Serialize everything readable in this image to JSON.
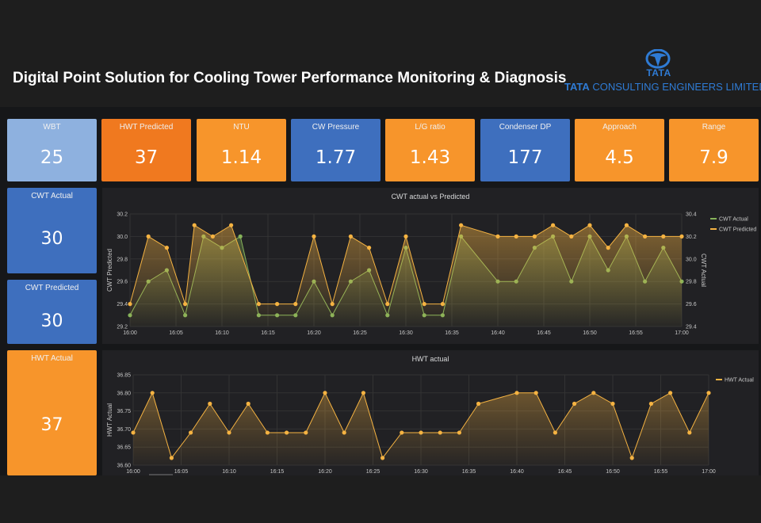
{
  "header": {
    "title": "Digital Point Solution for Cooling Tower Performance Monitoring & Diagnosis",
    "logo_mark_text": "TATA",
    "logo_company_bold": "TATA",
    "logo_company_rest": " CONSULTING ENGINEERS LIMITED"
  },
  "colors": {
    "orange": "#f7952b",
    "dark_orange": "#f0791f",
    "blue": "#3e6fbe",
    "light_blue": "#8eb1df",
    "green": "#86b35a",
    "yellow": "#f5b342"
  },
  "tiles": [
    {
      "label": "WBT",
      "value": "25"
    },
    {
      "label": "HWT Predicted",
      "value": "37"
    },
    {
      "label": "NTU",
      "value": "1.14"
    },
    {
      "label": "CW Pressure",
      "value": "1.77"
    },
    {
      "label": "L/G ratio",
      "value": "1.43"
    },
    {
      "label": "Condenser DP",
      "value": "177"
    },
    {
      "label": "Approach",
      "value": "4.5"
    },
    {
      "label": "Range",
      "value": "7.9"
    }
  ],
  "side_tiles": [
    {
      "label": "CWT Actual",
      "value": "30"
    },
    {
      "label": "CWT Predicted",
      "value": "30"
    },
    {
      "label": "HWT Actual",
      "value": "37"
    }
  ],
  "chart_data": [
    {
      "type": "line",
      "title": "CWT actual vs Predicted",
      "ylabel_left": "CWT Predicted",
      "ylabel_right": "CWT Actual",
      "x_ticks": [
        "16:00",
        "16:05",
        "16:10",
        "16:15",
        "16:20",
        "16:25",
        "16:30",
        "16:35",
        "16:40",
        "16:45",
        "16:50",
        "16:55",
        "17:00"
      ],
      "left_ticks": [
        "29.2",
        "29.4",
        "29.6",
        "29.8",
        "30.0",
        "30.2"
      ],
      "right_ticks": [
        "29.4",
        "29.6",
        "29.8",
        "30.0",
        "30.2",
        "30.4"
      ],
      "ylim_left": [
        29.2,
        30.2
      ],
      "ylim_right": [
        29.4,
        30.4
      ],
      "x_minutes": [
        0,
        1,
        2,
        3,
        4,
        5,
        6,
        7,
        8,
        9,
        10,
        11,
        12,
        13,
        14,
        15,
        16,
        17,
        18,
        19,
        20,
        21,
        22,
        23,
        24,
        25,
        26,
        27,
        28,
        29,
        30,
        31,
        32,
        33,
        34,
        35,
        36,
        37,
        38,
        39,
        40,
        41,
        42,
        43,
        44,
        45,
        46,
        47,
        48,
        49,
        50,
        51,
        52,
        53,
        54,
        55,
        56,
        57,
        58,
        59,
        60
      ],
      "legend_position": "right",
      "series": [
        {
          "name": "CWT Actual",
          "axis": "right",
          "color": "#86b35a",
          "times": [
            "16:00",
            "16:02",
            "16:04",
            "16:06",
            "16:08",
            "16:10",
            "16:12",
            "16:14",
            "16:16",
            "16:18",
            "16:20",
            "16:22",
            "16:24",
            "16:26",
            "16:28",
            "16:30",
            "16:32",
            "16:34",
            "16:36",
            "16:40",
            "16:42",
            "16:44",
            "16:46",
            "16:48",
            "16:50",
            "16:52",
            "16:54",
            "16:56",
            "16:58",
            "17:00"
          ],
          "values": [
            29.5,
            29.8,
            29.9,
            29.5,
            30.2,
            30.1,
            30.2,
            29.5,
            29.5,
            29.5,
            29.8,
            29.5,
            29.8,
            29.9,
            29.5,
            30.1,
            29.5,
            29.5,
            30.2,
            29.8,
            29.8,
            30.1,
            30.2,
            29.8,
            30.2,
            29.9,
            30.2,
            29.8,
            30.1,
            29.8
          ]
        },
        {
          "name": "CWT Predicted",
          "axis": "left",
          "color": "#f5b342",
          "times": [
            "16:00",
            "16:02",
            "16:04",
            "16:06",
            "16:07",
            "16:09",
            "16:11",
            "16:14",
            "16:16",
            "16:18",
            "16:20",
            "16:22",
            "16:24",
            "16:26",
            "16:28",
            "16:30",
            "16:32",
            "16:34",
            "16:36",
            "16:40",
            "16:42",
            "16:44",
            "16:46",
            "16:48",
            "16:50",
            "16:52",
            "16:54",
            "16:56",
            "16:58",
            "17:00"
          ],
          "values": [
            29.4,
            30.0,
            29.9,
            29.4,
            30.1,
            30.0,
            30.1,
            29.4,
            29.4,
            29.4,
            30.0,
            29.4,
            30.0,
            29.9,
            29.4,
            30.0,
            29.4,
            29.4,
            30.1,
            30.0,
            30.0,
            30.0,
            30.1,
            30.0,
            30.1,
            29.9,
            30.1,
            30.0,
            30.0,
            30.0
          ]
        }
      ]
    },
    {
      "type": "line",
      "title": "HWT actual",
      "ylabel": "HWT Actual",
      "x_ticks": [
        "16:00",
        "16:05",
        "16:10",
        "16:15",
        "16:20",
        "16:25",
        "16:30",
        "16:35",
        "16:40",
        "16:45",
        "16:50",
        "16:55",
        "17:00"
      ],
      "y_ticks": [
        "36.60",
        "36.65",
        "36.70",
        "36.75",
        "36.80",
        "36.85"
      ],
      "ylim": [
        36.6,
        36.85
      ],
      "legend_position": "right",
      "series": [
        {
          "name": "HWT Actual",
          "color": "#f5b342",
          "times": [
            "16:00",
            "16:02",
            "16:04",
            "16:06",
            "16:08",
            "16:10",
            "16:12",
            "16:14",
            "16:16",
            "16:18",
            "16:20",
            "16:22",
            "16:24",
            "16:26",
            "16:28",
            "16:30",
            "16:32",
            "16:34",
            "16:36",
            "16:40",
            "16:42",
            "16:44",
            "16:46",
            "16:48",
            "16:50",
            "16:52",
            "16:54",
            "16:56",
            "16:58",
            "17:00"
          ],
          "values": [
            36.69,
            36.8,
            36.62,
            36.69,
            36.77,
            36.69,
            36.77,
            36.69,
            36.69,
            36.69,
            36.8,
            36.69,
            36.8,
            36.62,
            36.69,
            36.69,
            36.69,
            36.69,
            36.77,
            36.8,
            36.8,
            36.69,
            36.77,
            36.8,
            36.77,
            36.62,
            36.77,
            36.8,
            36.69,
            36.8
          ]
        }
      ]
    }
  ]
}
